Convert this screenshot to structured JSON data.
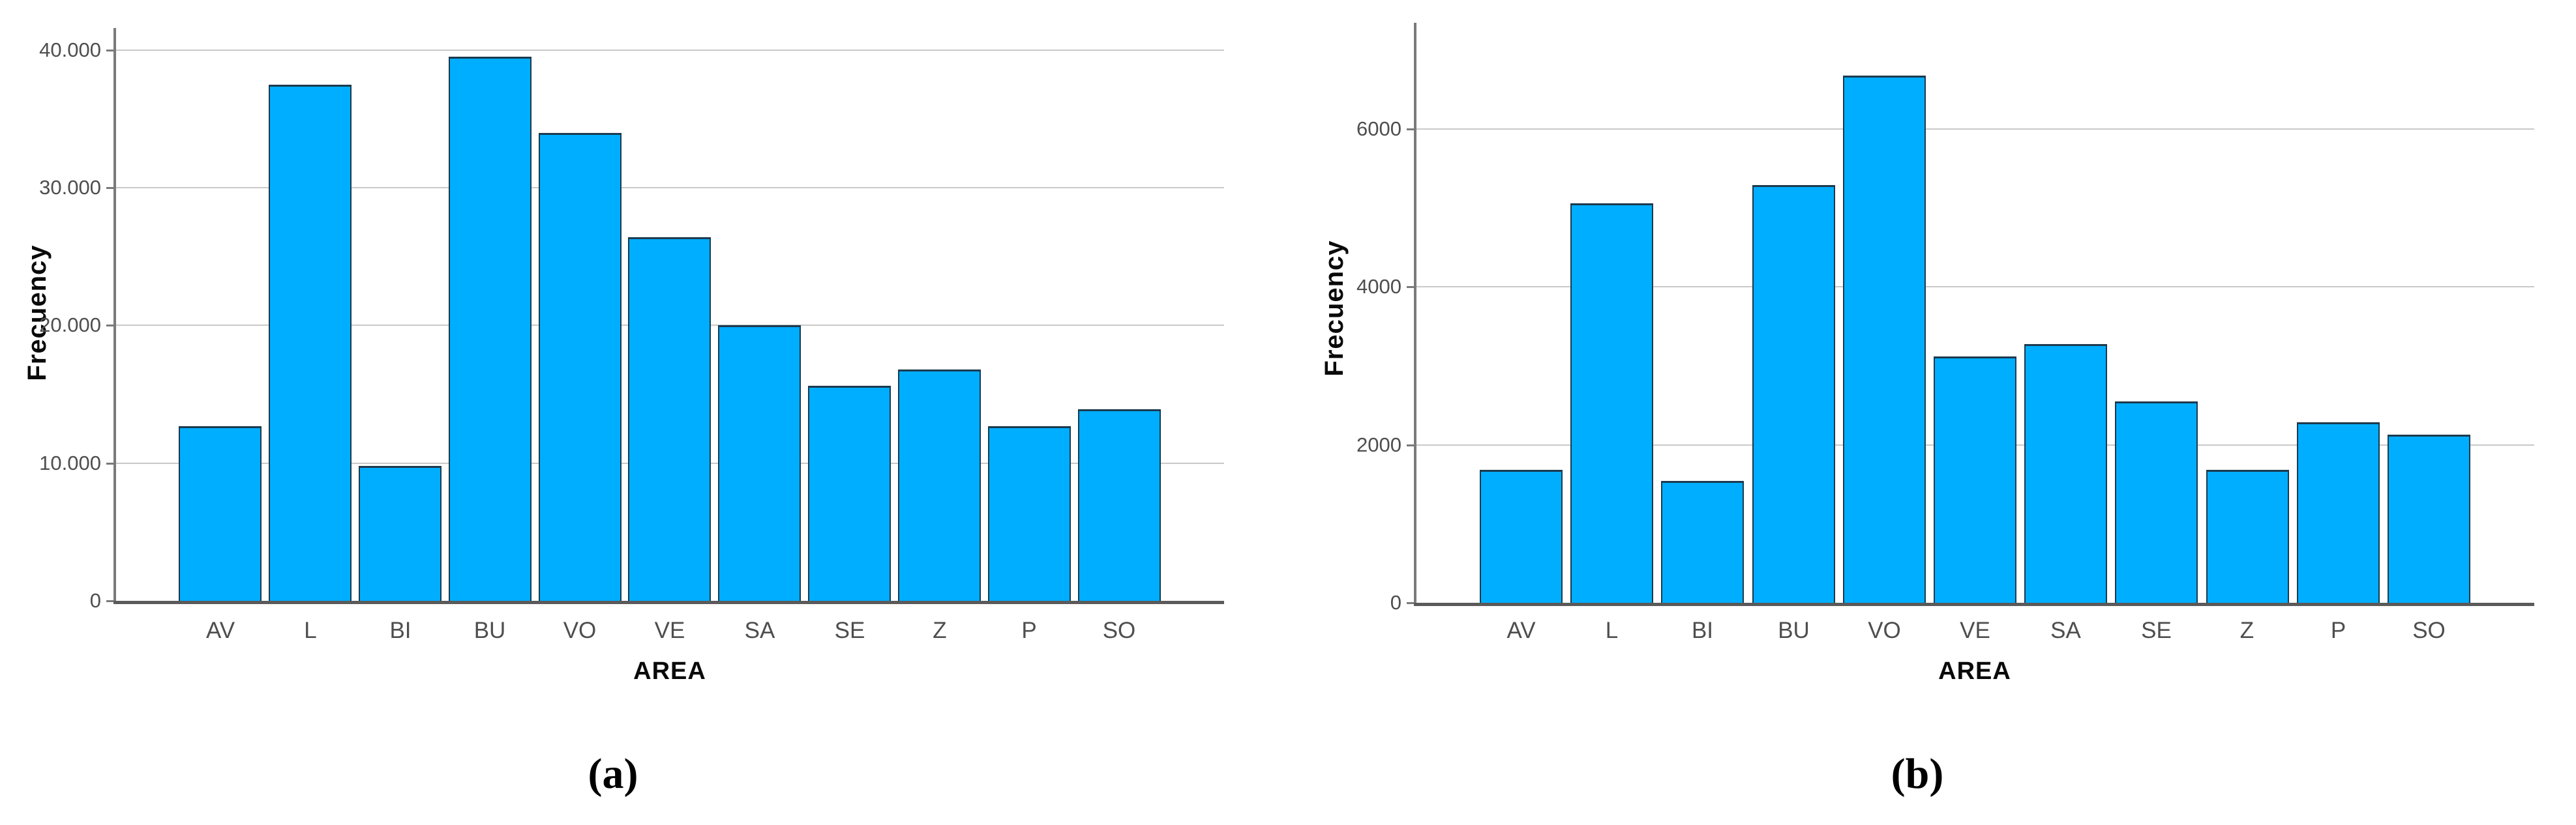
{
  "figure": {
    "background": "#ffffff",
    "captions": {
      "a": "(a)",
      "b": "(b)"
    }
  },
  "styles": {
    "bar_fill": "#00AEFF",
    "bar_border": "#1C3A4E",
    "gridline_color": "#C9C9C9",
    "axis_color": "#7A7A7A",
    "axis_dark_color": "#5A5A5A",
    "tick_text_color": "#4E4E4E",
    "title_text_color": "#0A0A0A",
    "caption_text_color": "#000000"
  },
  "chart_data": [
    {
      "id": "a",
      "type": "bar",
      "title": "",
      "xlabel": "AREA",
      "ylabel": "Frecuency",
      "categories": [
        "AV",
        "L",
        "BI",
        "BU",
        "VO",
        "VE",
        "SA",
        "SE",
        "Z",
        "P",
        "SO"
      ],
      "values": [
        12700,
        37500,
        9800,
        39500,
        34000,
        26400,
        20000,
        15600,
        16800,
        12700,
        13900
      ],
      "ytick_values": [
        0,
        10000,
        20000,
        30000,
        40000
      ],
      "ytick_labels": [
        "0",
        "10.000",
        "20.000",
        "30.000",
        "40.000"
      ],
      "ylim": [
        0,
        41600
      ],
      "grid": true,
      "legend": false
    },
    {
      "id": "b",
      "type": "bar",
      "title": "",
      "xlabel": "AREA",
      "ylabel": "Frecuency",
      "categories": [
        "AV",
        "L",
        "BI",
        "BU",
        "VO",
        "VE",
        "SA",
        "SE",
        "Z",
        "P",
        "SO"
      ],
      "values": [
        1680,
        5060,
        1540,
        5290,
        6680,
        3120,
        3280,
        2550,
        1680,
        2290,
        2130
      ],
      "ytick_values": [
        0,
        2000,
        4000,
        6000
      ],
      "ytick_labels": [
        "0",
        "2000",
        "4000",
        "6000"
      ],
      "ylim": [
        0,
        7345
      ],
      "grid": true,
      "legend": false
    }
  ]
}
